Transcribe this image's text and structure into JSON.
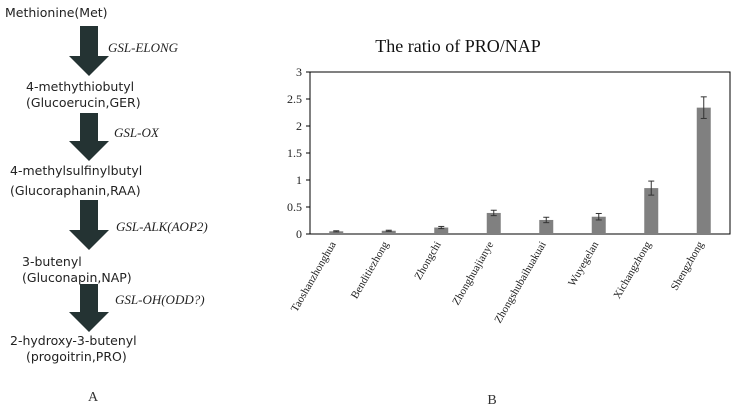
{
  "panel_a": {
    "label": "A",
    "steps": [
      {
        "compound_line1": "Methionine(Met)",
        "compound_line2": ""
      },
      {
        "compound_line1": "4-methythiobutyl",
        "compound_line2": "(Glucoerucin,GER)"
      },
      {
        "compound_line1": "4-methylsulfinylbutyl",
        "compound_line2": "(Glucoraphanin,RAA)"
      },
      {
        "compound_line1": "3-butenyl",
        "compound_line2": "(Gluconapin,NAP)"
      },
      {
        "compound_line1": "2-hydroxy-3-butenyl",
        "compound_line2": "(progoitrin,PRO)"
      }
    ],
    "enzymes": [
      "GSL-ELONG",
      "GSL-OX",
      "GSL-ALK(AOP2)",
      "GSL-OH(ODD?)"
    ],
    "arrow_color": "#243333"
  },
  "panel_b": {
    "label": "B"
  },
  "chart_data": {
    "type": "bar",
    "title": "The ratio of PRO/NAP",
    "xlabel": "",
    "ylabel": "",
    "ylim": [
      0,
      3
    ],
    "yticks": [
      "0",
      "0.5",
      "1",
      "1.5",
      "2",
      "2.5",
      "3"
    ],
    "grid": false,
    "bar_color": "#808080",
    "categories": [
      "Taoshanzhonghua",
      "Benditiezhong",
      "Zhongchi",
      "Zhonghuajianye",
      "Zhongshubaihuakuai",
      "Wuyegelan",
      "Xichangzhong",
      "Shengzhong"
    ],
    "values": [
      0.05,
      0.06,
      0.12,
      0.39,
      0.26,
      0.32,
      0.85,
      2.34
    ],
    "errors": [
      0.01,
      0.01,
      0.02,
      0.05,
      0.05,
      0.06,
      0.13,
      0.2
    ]
  }
}
